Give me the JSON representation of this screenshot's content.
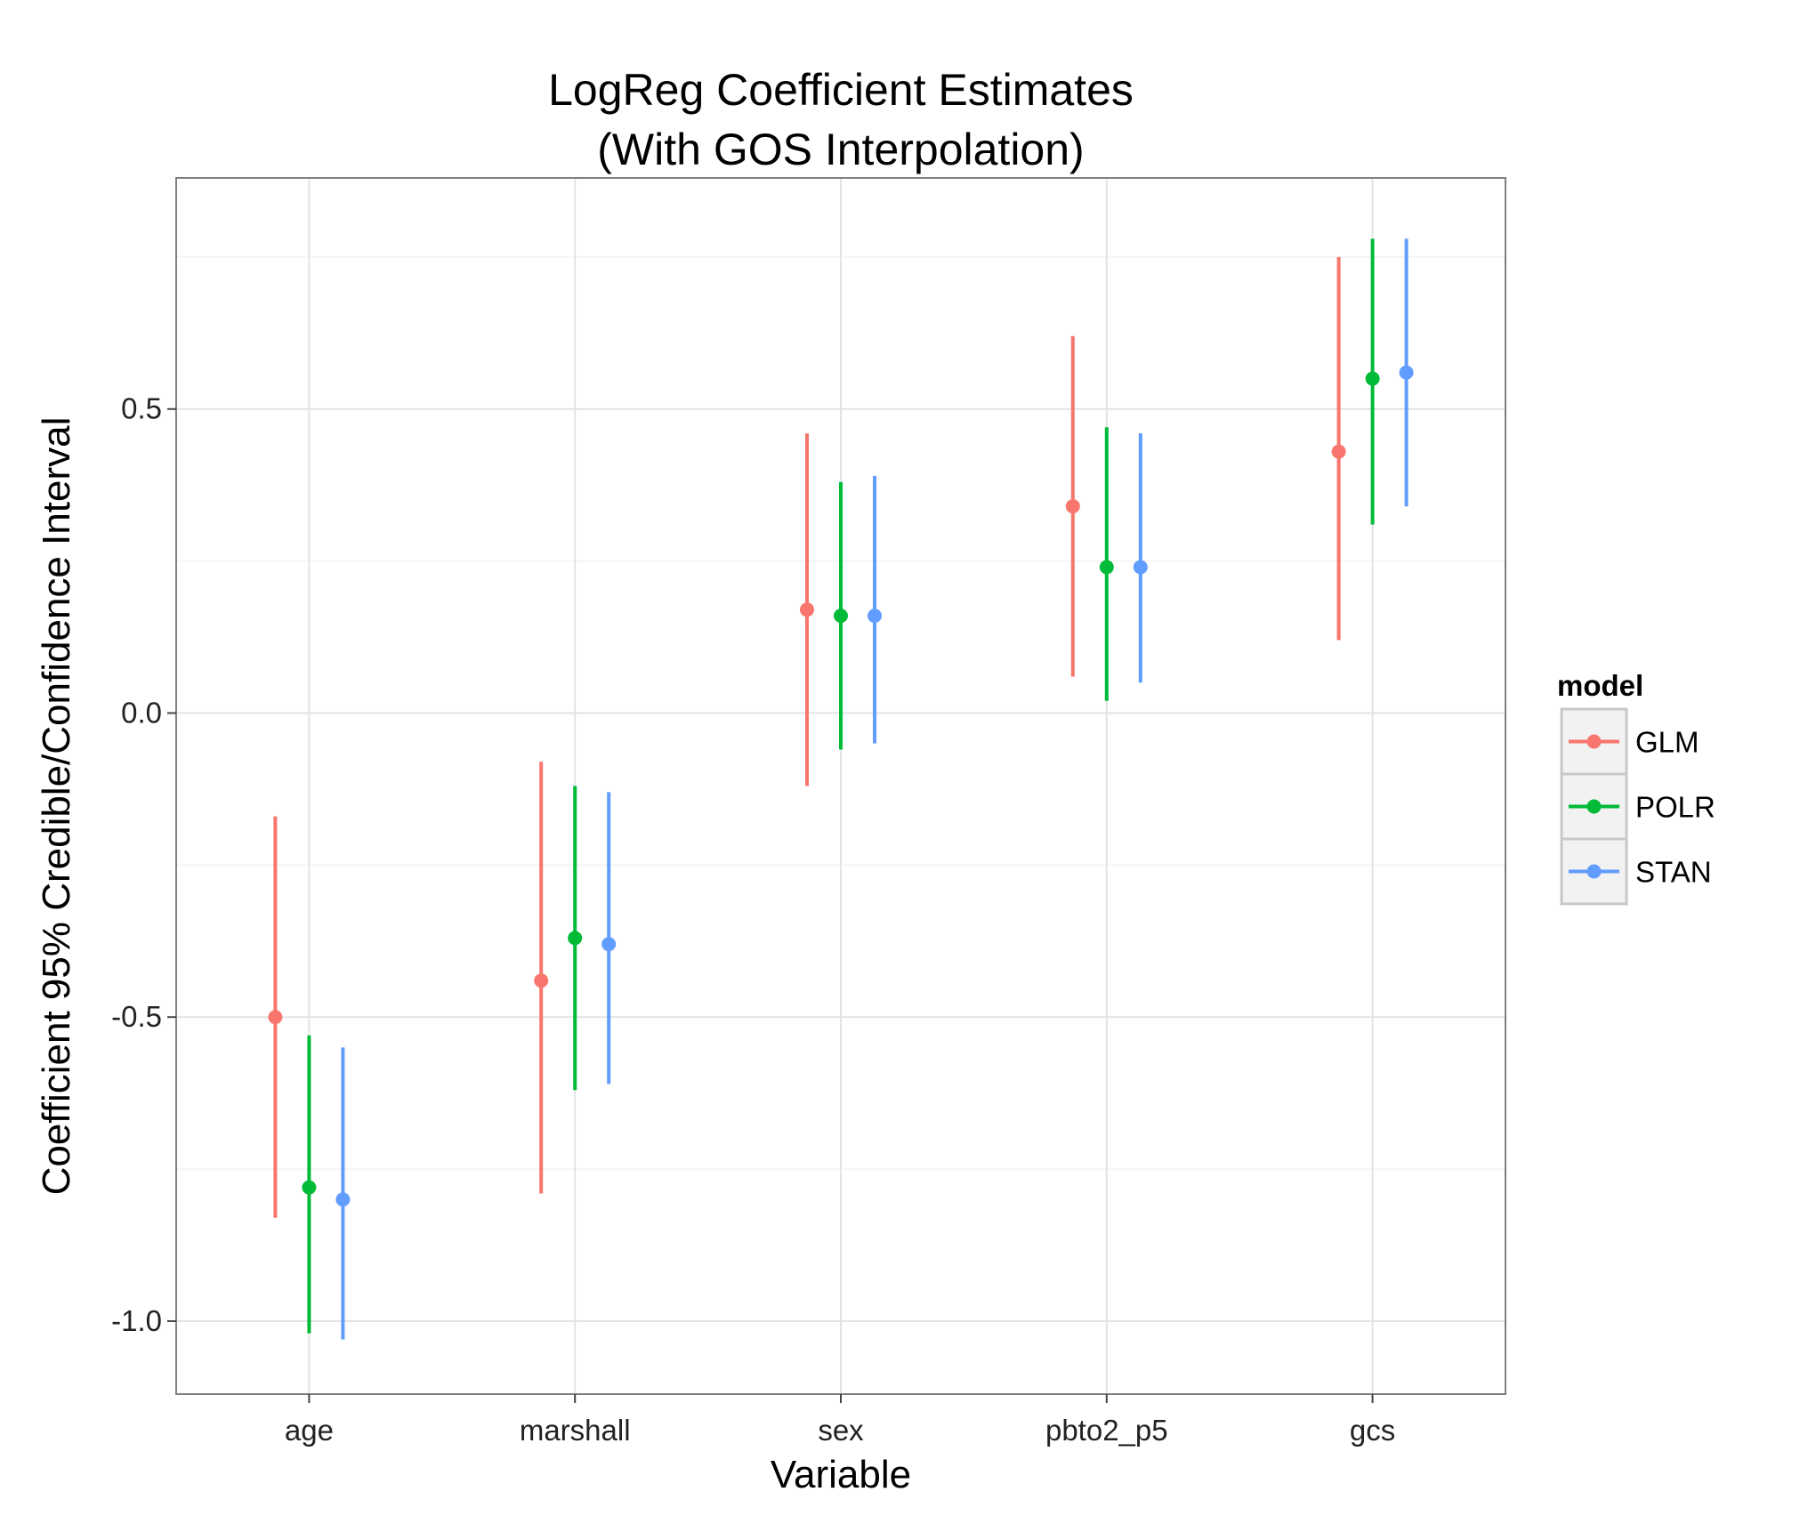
{
  "chart_data": {
    "type": "pointrange",
    "title": "LogReg Coefficient Estimates",
    "subtitle": "(With GOS Interpolation)",
    "xlabel": "Variable",
    "ylabel": "Coefficient 95% Credible/Confidence Interval",
    "categories": [
      "age",
      "marshall",
      "sex",
      "pbto2_p5",
      "gcs"
    ],
    "ylim": [
      -1.12,
      0.88
    ],
    "yticks": [
      -1.0,
      -0.5,
      0.0,
      0.5
    ],
    "ytick_labels": [
      "-1.0",
      "-0.5",
      "0.0",
      "0.5"
    ],
    "grid": true,
    "legend": {
      "title": "model",
      "position": "right"
    },
    "series": [
      {
        "name": "GLM",
        "color": "#F8766D",
        "estimate": [
          -0.5,
          -0.44,
          0.17,
          0.34,
          0.43
        ],
        "lower": [
          -0.83,
          -0.79,
          -0.12,
          0.06,
          0.12
        ],
        "upper": [
          -0.17,
          -0.08,
          0.46,
          0.62,
          0.75
        ]
      },
      {
        "name": "POLR",
        "color": "#00BA38",
        "estimate": [
          -0.78,
          -0.37,
          0.16,
          0.24,
          0.55
        ],
        "lower": [
          -1.02,
          -0.62,
          -0.06,
          0.02,
          0.31
        ],
        "upper": [
          -0.53,
          -0.12,
          0.38,
          0.47,
          0.78
        ]
      },
      {
        "name": "STAN",
        "color": "#619CFF",
        "estimate": [
          -0.8,
          -0.38,
          0.16,
          0.24,
          0.56
        ],
        "lower": [
          -1.03,
          -0.61,
          -0.05,
          0.05,
          0.34
        ],
        "upper": [
          -0.55,
          -0.13,
          0.39,
          0.46,
          0.78
        ]
      }
    ]
  }
}
